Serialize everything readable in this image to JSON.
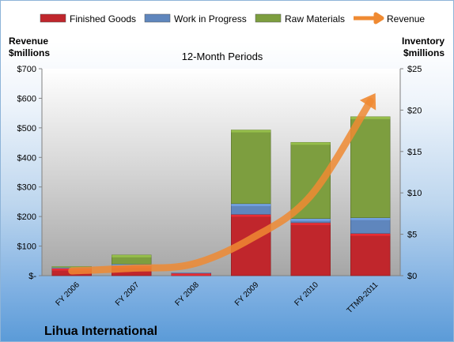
{
  "chart_data": {
    "type": "bar",
    "title": "12-Month Periods",
    "company": "Lihua International",
    "categories": [
      "FY 2006",
      "FY 2007",
      "FY 2008",
      "FY 2009",
      "FY 2010",
      "TTM9-2011"
    ],
    "left_axis": {
      "title_line1": "Revenue",
      "title_line2": "$millions",
      "min": 0,
      "max": 700,
      "step": 100,
      "tick_labels": [
        "$-",
        "$100",
        "$200",
        "$300",
        "$400",
        "$500",
        "$600",
        "$700"
      ]
    },
    "right_axis": {
      "title_line1": "Inventory",
      "title_line2": "$millions",
      "min": 0,
      "max": 25,
      "step": 5,
      "tick_labels": [
        "$0",
        "$5",
        "$10",
        "$15",
        "$20",
        "$25"
      ]
    },
    "series": [
      {
        "name": "Finished Goods",
        "axis": "right",
        "kind": "stacked-bar",
        "color": "#c0262c",
        "values": [
          0.9,
          1.2,
          0.3,
          7.4,
          6.4,
          5.1
        ]
      },
      {
        "name": "Work in Progress",
        "axis": "right",
        "kind": "stacked-bar",
        "color": "#5f86bd",
        "values": [
          0.1,
          0.2,
          0.05,
          1.3,
          0.5,
          1.9
        ]
      },
      {
        "name": "Raw Materials",
        "axis": "right",
        "kind": "stacked-bar",
        "color": "#7d9e3f",
        "values": [
          0.1,
          1.1,
          0.0,
          8.9,
          9.2,
          12.2
        ]
      },
      {
        "name": "Revenue",
        "axis": "left",
        "kind": "line-arrow",
        "color": "#ef8a32",
        "values": [
          16,
          25,
          38,
          125,
          270,
          590
        ]
      }
    ],
    "legend": {
      "position": "top"
    },
    "grid": false
  }
}
